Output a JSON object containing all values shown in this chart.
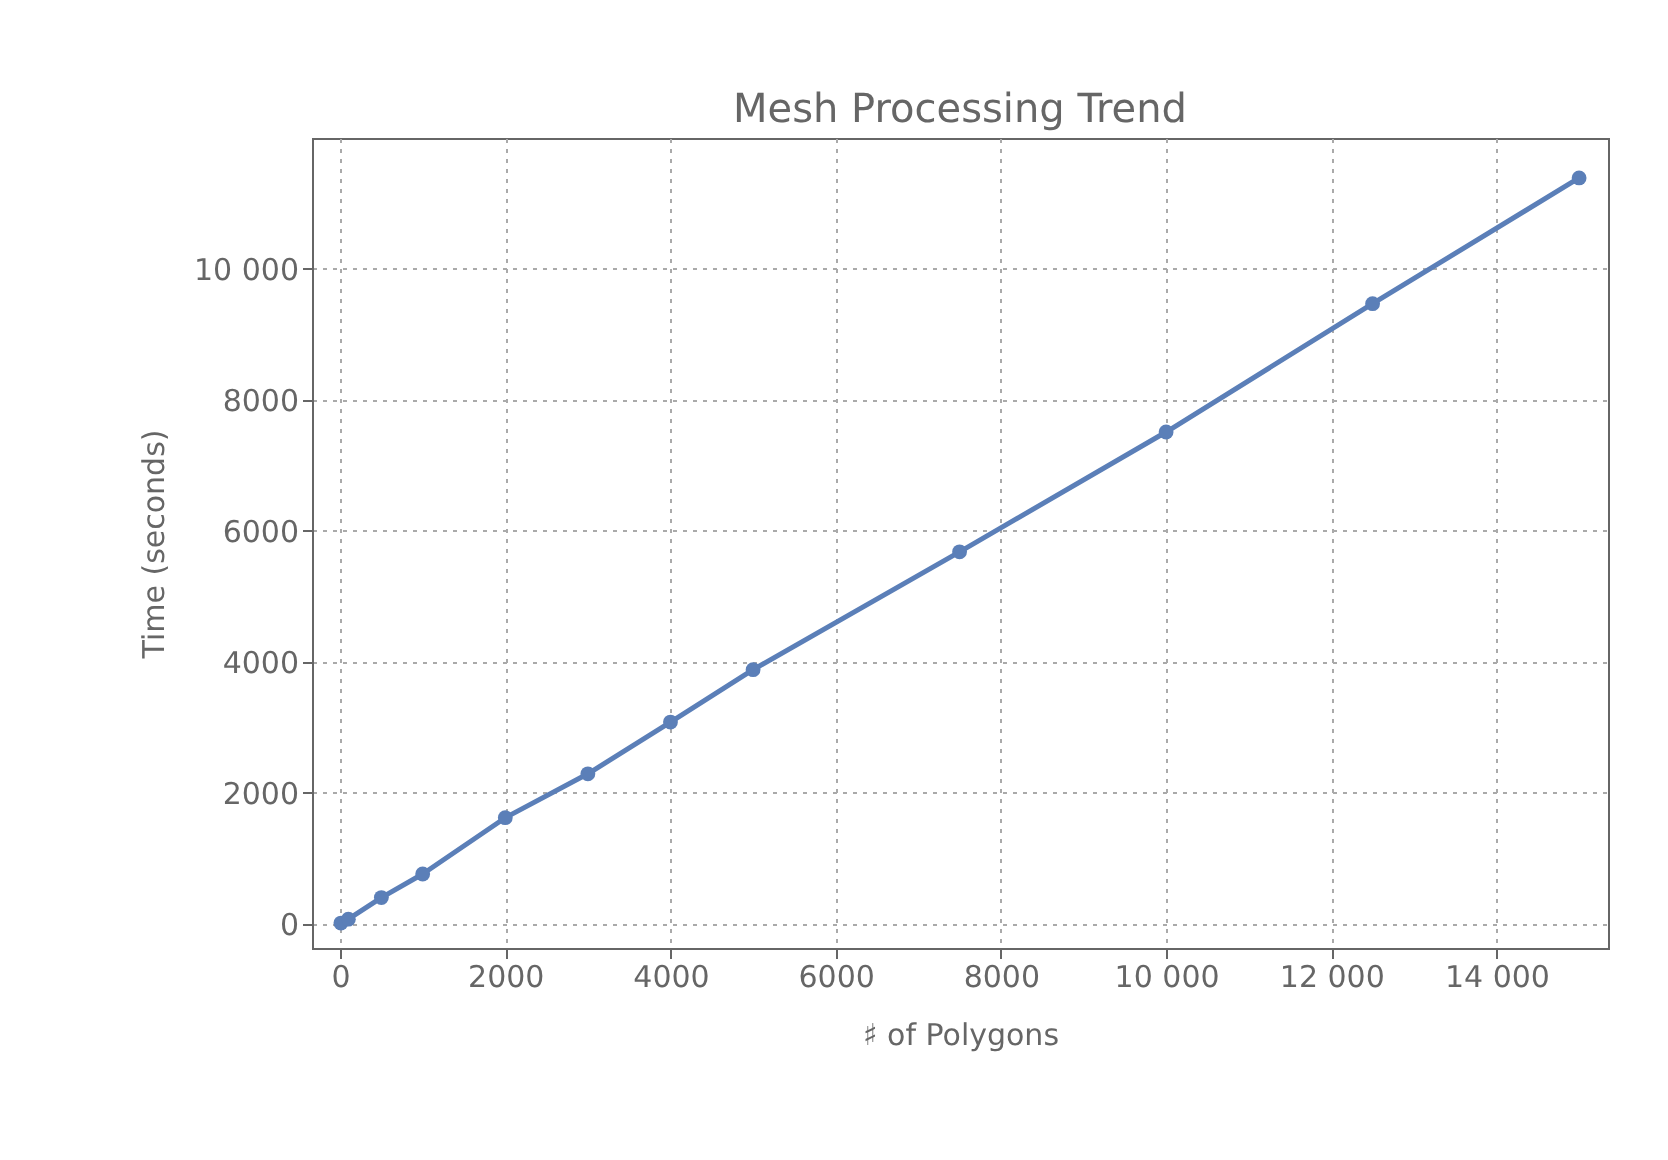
{
  "chart_data": {
    "type": "line",
    "title": "Mesh Processing Trend",
    "xlabel": "♯ of Polygons",
    "ylabel": "Time (seconds)",
    "x": [
      10,
      100,
      500,
      1000,
      2000,
      3000,
      4000,
      5000,
      7500,
      10000,
      12500,
      15000
    ],
    "series": [
      {
        "color": "#5b7fb8",
        "values": [
          10,
          70,
          400,
          760,
          1620,
          2290,
          3080,
          3880,
          5680,
          7510,
          9470,
          11390
        ]
      }
    ],
    "xlim": [
      -340,
      15350
    ],
    "ylim": [
      -370,
      12000
    ],
    "xticks": [
      0,
      2000,
      4000,
      6000,
      8000,
      {
        "value": 10000,
        "label": "10 000"
      },
      {
        "value": 12000,
        "label": "12 000"
      },
      {
        "value": 14000,
        "label": "14 000"
      }
    ],
    "yticks": [
      0,
      2000,
      4000,
      6000,
      8000,
      {
        "value": 10000,
        "label": "10 000"
      }
    ],
    "grid": true,
    "marker": "circle",
    "line_style": "solid"
  }
}
